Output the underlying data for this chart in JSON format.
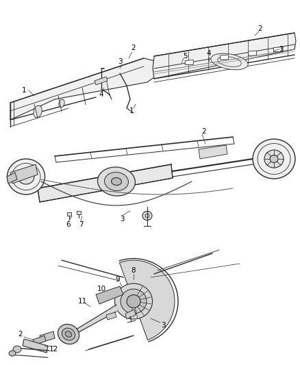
{
  "background_color": "#ffffff",
  "line_color": "#2a2a2a",
  "label_color": "#000000",
  "fig_width": 4.38,
  "fig_height": 5.33,
  "dpi": 100,
  "font_size": 7.5
}
